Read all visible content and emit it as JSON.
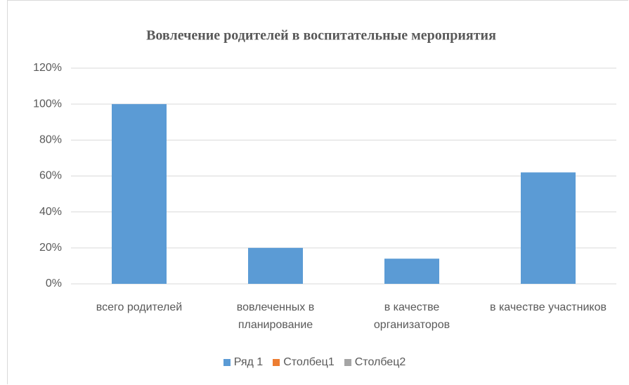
{
  "chart_data": {
    "type": "bar",
    "title": "Вовлечение родителей в воспитательные мероприятия",
    "categories": [
      "всего родителей",
      "вовлеченных в планирование",
      "в качестве организаторов",
      "в качестве участников"
    ],
    "series": [
      {
        "name": "Ряд 1",
        "color": "#5b9bd5",
        "values": [
          100,
          20,
          14,
          62
        ]
      },
      {
        "name": "Столбец1",
        "color": "#ed7d31",
        "values": [
          null,
          null,
          null,
          null
        ]
      },
      {
        "name": "Столбец2",
        "color": "#a5a5a5",
        "values": [
          null,
          null,
          null,
          null
        ]
      }
    ],
    "ylim": [
      0,
      120
    ],
    "yticks": [
      {
        "value": 0,
        "label": "0%"
      },
      {
        "value": 20,
        "label": "20%"
      },
      {
        "value": 40,
        "label": "40%"
      },
      {
        "value": 60,
        "label": "60%"
      },
      {
        "value": 80,
        "label": "80%"
      },
      {
        "value": 100,
        "label": "100%"
      },
      {
        "value": 120,
        "label": "120%"
      }
    ],
    "grid": true
  }
}
